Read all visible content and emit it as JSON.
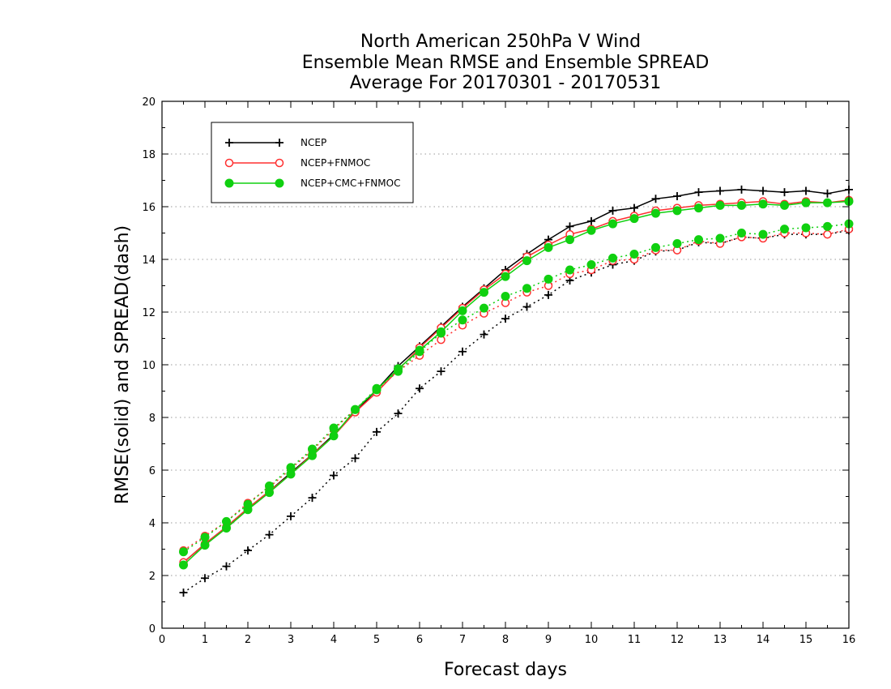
{
  "chart_data": {
    "type": "line",
    "title_lines": [
      "North American 250hPa V Wind",
      "Ensemble Mean RMSE and Ensemble SPREAD",
      "Average For 20170301 - 20170531"
    ],
    "xlabel": "Forecast days",
    "ylabel": "RMSE(solid) and SPREAD(dash)",
    "xlim": [
      0,
      16
    ],
    "ylim": [
      0,
      20
    ],
    "xticks": [
      0,
      1,
      2,
      3,
      4,
      5,
      6,
      7,
      8,
      9,
      10,
      11,
      12,
      13,
      14,
      15,
      16
    ],
    "yticks": [
      0,
      2,
      4,
      6,
      8,
      10,
      12,
      14,
      16,
      18,
      20
    ],
    "grid": "dotted horizontal",
    "legend_position": "top-left",
    "x": [
      0.5,
      1,
      1.5,
      2,
      2.5,
      3,
      3.5,
      4,
      4.5,
      5,
      5.5,
      6,
      6.5,
      7,
      7.5,
      8,
      8.5,
      9,
      9.5,
      10,
      10.5,
      11,
      11.5,
      12,
      12.5,
      13,
      13.5,
      14,
      14.5,
      15,
      15.5,
      16
    ],
    "series": [
      {
        "name": "NCEP",
        "color": "#000000",
        "marker": "plus",
        "rmse": [
          2.5,
          3.2,
          3.85,
          4.55,
          5.2,
          5.9,
          6.6,
          7.35,
          8.2,
          9.05,
          9.95,
          10.7,
          11.45,
          12.2,
          12.9,
          13.6,
          14.2,
          14.75,
          15.25,
          15.45,
          15.85,
          15.95,
          16.3,
          16.4,
          16.55,
          16.6,
          16.65,
          16.6,
          16.55,
          16.6,
          16.5,
          16.65
        ],
        "spread": [
          1.35,
          1.9,
          2.35,
          2.95,
          3.55,
          4.25,
          4.95,
          5.8,
          6.45,
          7.45,
          8.15,
          9.1,
          9.75,
          10.5,
          11.15,
          11.75,
          12.2,
          12.65,
          13.2,
          13.5,
          13.8,
          13.95,
          14.3,
          14.35,
          14.65,
          14.6,
          14.85,
          14.8,
          14.95,
          14.95,
          14.95,
          15.1
        ]
      },
      {
        "name": "NCEP+FNMOC",
        "color": "#ff3030",
        "marker": "open-circle",
        "rmse": [
          2.5,
          3.2,
          3.85,
          4.55,
          5.2,
          5.85,
          6.6,
          7.3,
          8.2,
          8.95,
          9.8,
          10.65,
          11.4,
          12.15,
          12.85,
          13.45,
          14.1,
          14.55,
          14.95,
          15.15,
          15.45,
          15.65,
          15.85,
          15.95,
          16.05,
          16.1,
          16.15,
          16.2,
          16.1,
          16.2,
          16.15,
          16.25
        ],
        "spread": [
          2.95,
          3.5,
          4.05,
          4.75,
          5.35,
          6.05,
          6.75,
          7.55,
          8.3,
          9.05,
          9.75,
          10.35,
          10.95,
          11.5,
          11.95,
          12.35,
          12.75,
          13.0,
          13.45,
          13.6,
          13.95,
          14.0,
          14.35,
          14.35,
          14.7,
          14.6,
          14.85,
          14.8,
          15.0,
          15.0,
          14.95,
          15.15
        ]
      },
      {
        "name": "NCEP+CMC+FNMOC",
        "color": "#10d010",
        "marker": "filled-circle",
        "rmse": [
          2.4,
          3.15,
          3.8,
          4.5,
          5.15,
          5.85,
          6.55,
          7.3,
          8.3,
          9.05,
          9.85,
          10.55,
          11.25,
          12.05,
          12.75,
          13.35,
          13.95,
          14.45,
          14.75,
          15.1,
          15.35,
          15.55,
          15.75,
          15.85,
          15.95,
          16.05,
          16.05,
          16.1,
          16.05,
          16.15,
          16.15,
          16.2
        ],
        "spread": [
          2.9,
          3.45,
          4.05,
          4.7,
          5.4,
          6.1,
          6.8,
          7.6,
          8.3,
          9.1,
          9.75,
          10.5,
          11.2,
          11.7,
          12.15,
          12.6,
          12.9,
          13.25,
          13.6,
          13.8,
          14.05,
          14.2,
          14.45,
          14.6,
          14.75,
          14.8,
          15.0,
          14.95,
          15.15,
          15.2,
          15.25,
          15.35
        ]
      }
    ]
  }
}
